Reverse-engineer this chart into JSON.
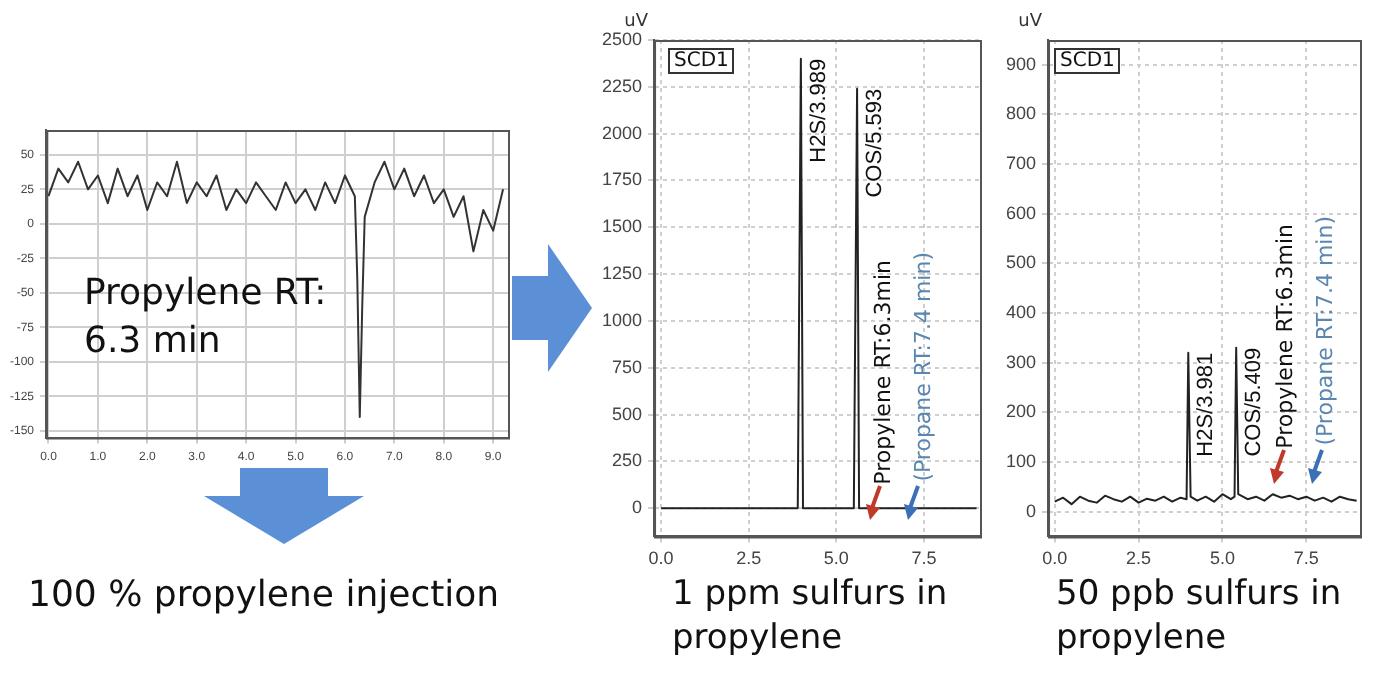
{
  "chart_data": [
    {
      "type": "line",
      "xlim": [
        -0.05,
        9.3
      ],
      "ylim": [
        -155,
        68
      ],
      "xticks": [
        {
          "value": 0,
          "label": "0.0"
        },
        {
          "value": 1,
          "label": "1.0"
        },
        {
          "value": 2,
          "label": "2.0"
        },
        {
          "value": 3,
          "label": "3.0"
        },
        {
          "value": 4,
          "label": "4.0"
        },
        {
          "value": 5,
          "label": "5.0"
        },
        {
          "value": 6,
          "label": "6.0"
        },
        {
          "value": 7,
          "label": "7.0"
        },
        {
          "value": 8,
          "label": "8.0"
        },
        {
          "value": 9,
          "label": "9.0"
        }
      ],
      "yticks": [
        50,
        25,
        0,
        -25,
        -50,
        -75,
        -100,
        -125,
        -150
      ],
      "grid": true,
      "marker": "none",
      "series": [
        {
          "color": "#333333",
          "x": [
            0,
            0.2,
            0.4,
            0.6,
            0.8,
            1.0,
            1.2,
            1.4,
            1.6,
            1.8,
            2.0,
            2.2,
            2.4,
            2.6,
            2.8,
            3.0,
            3.2,
            3.4,
            3.6,
            3.8,
            4.0,
            4.2,
            4.4,
            4.6,
            4.8,
            5.0,
            5.2,
            5.4,
            5.6,
            5.8,
            6.0,
            6.2,
            6.25,
            6.3,
            6.35,
            6.4,
            6.6,
            6.8,
            7.0,
            7.2,
            7.4,
            7.6,
            7.8,
            8.0,
            8.2,
            8.4,
            8.6,
            8.8,
            9.0,
            9.2
          ],
          "values": [
            20,
            40,
            30,
            45,
            25,
            35,
            15,
            40,
            20,
            35,
            10,
            30,
            20,
            45,
            15,
            30,
            20,
            35,
            10,
            25,
            15,
            30,
            20,
            10,
            30,
            15,
            25,
            10,
            30,
            15,
            35,
            20,
            -40,
            -140,
            -60,
            5,
            30,
            45,
            25,
            40,
            20,
            35,
            15,
            25,
            5,
            20,
            -20,
            10,
            -5,
            25
          ]
        }
      ],
      "annotations": [
        "Propylene RT: 6.3 min",
        "100 % propylene injection"
      ]
    },
    {
      "type": "line",
      "xlim": [
        -0.2,
        9.1
      ],
      "ylim": [
        -150,
        2500
      ],
      "xticks": [
        {
          "value": 0,
          "label": "0.0"
        },
        {
          "value": 2.5,
          "label": "2.5"
        },
        {
          "value": 5,
          "label": "5.0"
        },
        {
          "value": 7.5,
          "label": "7.5"
        }
      ],
      "yticks": [
        0,
        250,
        500,
        750,
        1000,
        1250,
        1500,
        1750,
        2000,
        2250,
        2500
      ],
      "ylabel": "uV",
      "grid": true,
      "marker": "none",
      "series": [
        {
          "color": "#222222",
          "x": [
            0,
            0.25,
            0.5,
            0.75,
            1,
            1.25,
            1.5,
            1.75,
            2,
            2.25,
            2.5,
            2.75,
            3,
            3.25,
            3.5,
            3.75,
            3.9,
            3.989,
            4.05,
            4.25,
            4.5,
            4.75,
            5,
            5.25,
            5.5,
            5.593,
            5.65,
            5.75,
            6,
            6.25,
            6.5,
            6.75,
            7,
            7.25,
            7.5,
            7.75,
            8,
            8.25,
            8.5,
            8.75,
            9
          ],
          "values": [
            0,
            0,
            0,
            0,
            0,
            0,
            0,
            0,
            0,
            0,
            0,
            0,
            0,
            0,
            0,
            0,
            0,
            2400,
            0,
            0,
            0,
            0,
            0,
            0,
            0,
            2240,
            0,
            0,
            0,
            0,
            0,
            0,
            0,
            0,
            0,
            0,
            0,
            0,
            0,
            0,
            0
          ]
        }
      ],
      "annotations": [
        "SCD1",
        "1 ppm sulfurs in propylene",
        "Propylene RT:6.3min",
        "(Propane RT:7.4 min)",
        {
          "text": "H2S/3.989",
          "x": 3.989,
          "y": 2400
        },
        {
          "text": "COS/5.593",
          "x": 5.593,
          "y": 2240
        }
      ]
    },
    {
      "type": "line",
      "xlim": [
        -0.2,
        9.1
      ],
      "ylim": [
        -50,
        950
      ],
      "xticks": [
        {
          "value": 0,
          "label": "0.0"
        },
        {
          "value": 2.5,
          "label": "2.5"
        },
        {
          "value": 5,
          "label": "5.0"
        },
        {
          "value": 7.5,
          "label": "7.5"
        }
      ],
      "yticks": [
        0,
        100,
        200,
        300,
        400,
        500,
        600,
        700,
        800,
        900
      ],
      "ylabel": "uV",
      "grid": true,
      "marker": "none",
      "series": [
        {
          "color": "#222222",
          "x": [
            0,
            0.25,
            0.5,
            0.75,
            1,
            1.25,
            1.5,
            1.75,
            2,
            2.25,
            2.5,
            2.75,
            3,
            3.25,
            3.5,
            3.75,
            3.93,
            3.981,
            4.05,
            4.25,
            4.5,
            4.75,
            5,
            5.25,
            5.36,
            5.409,
            5.47,
            5.75,
            6,
            6.25,
            6.5,
            6.75,
            7,
            7.25,
            7.5,
            7.75,
            8,
            8.25,
            8.5,
            8.75,
            9
          ],
          "values": [
            20,
            28,
            15,
            30,
            22,
            18,
            32,
            25,
            20,
            30,
            18,
            26,
            22,
            30,
            20,
            28,
            25,
            320,
            30,
            22,
            30,
            20,
            35,
            25,
            30,
            330,
            35,
            25,
            30,
            22,
            35,
            28,
            32,
            25,
            30,
            22,
            28,
            20,
            30,
            25,
            22
          ]
        }
      ],
      "annotations": [
        "SCD1",
        "50 ppb sulfurs in propylene",
        "Propylene RT:6.3min",
        "(Propane RT:7.4 min)",
        {
          "text": "H2S/3.981",
          "x": 3.981,
          "y": 320
        },
        {
          "text": "COS/5.409",
          "x": 5.409,
          "y": 330
        }
      ]
    }
  ]
}
